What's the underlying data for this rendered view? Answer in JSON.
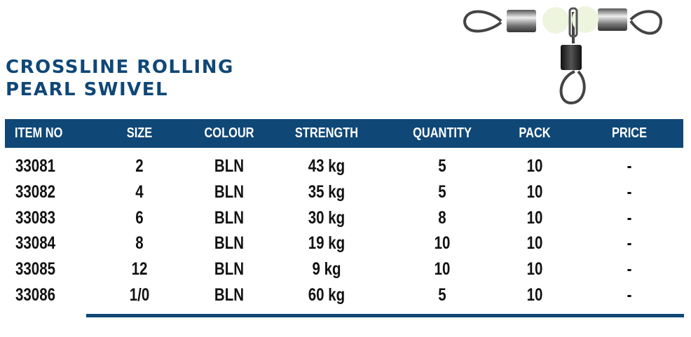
{
  "title": {
    "line1": "CROSSLINE ROLLING",
    "line2": "PEARL SWIVEL"
  },
  "product_image": {
    "icon": "three-way-swivel-with-pearls"
  },
  "colors": {
    "brand": "#0f4777"
  },
  "table": {
    "headers": [
      "ITEM NO",
      "SIZE",
      "COLOUR",
      "STRENGTH",
      "QUANTITY",
      "PACK",
      "PRICE"
    ],
    "rows": [
      [
        "33081",
        "2",
        "BLN",
        "43 kg",
        "5",
        "10",
        "-"
      ],
      [
        "33082",
        "4",
        "BLN",
        "35 kg",
        "5",
        "10",
        "-"
      ],
      [
        "33083",
        "6",
        "BLN",
        "30 kg",
        "8",
        "10",
        "-"
      ],
      [
        "33084",
        "8",
        "BLN",
        "19 kg",
        "10",
        "10",
        "-"
      ],
      [
        "33085",
        "12",
        "BLN",
        "9 kg",
        "10",
        "10",
        "-"
      ],
      [
        "33086",
        "1/0",
        "BLN",
        "60 kg",
        "5",
        "10",
        "-"
      ]
    ]
  }
}
